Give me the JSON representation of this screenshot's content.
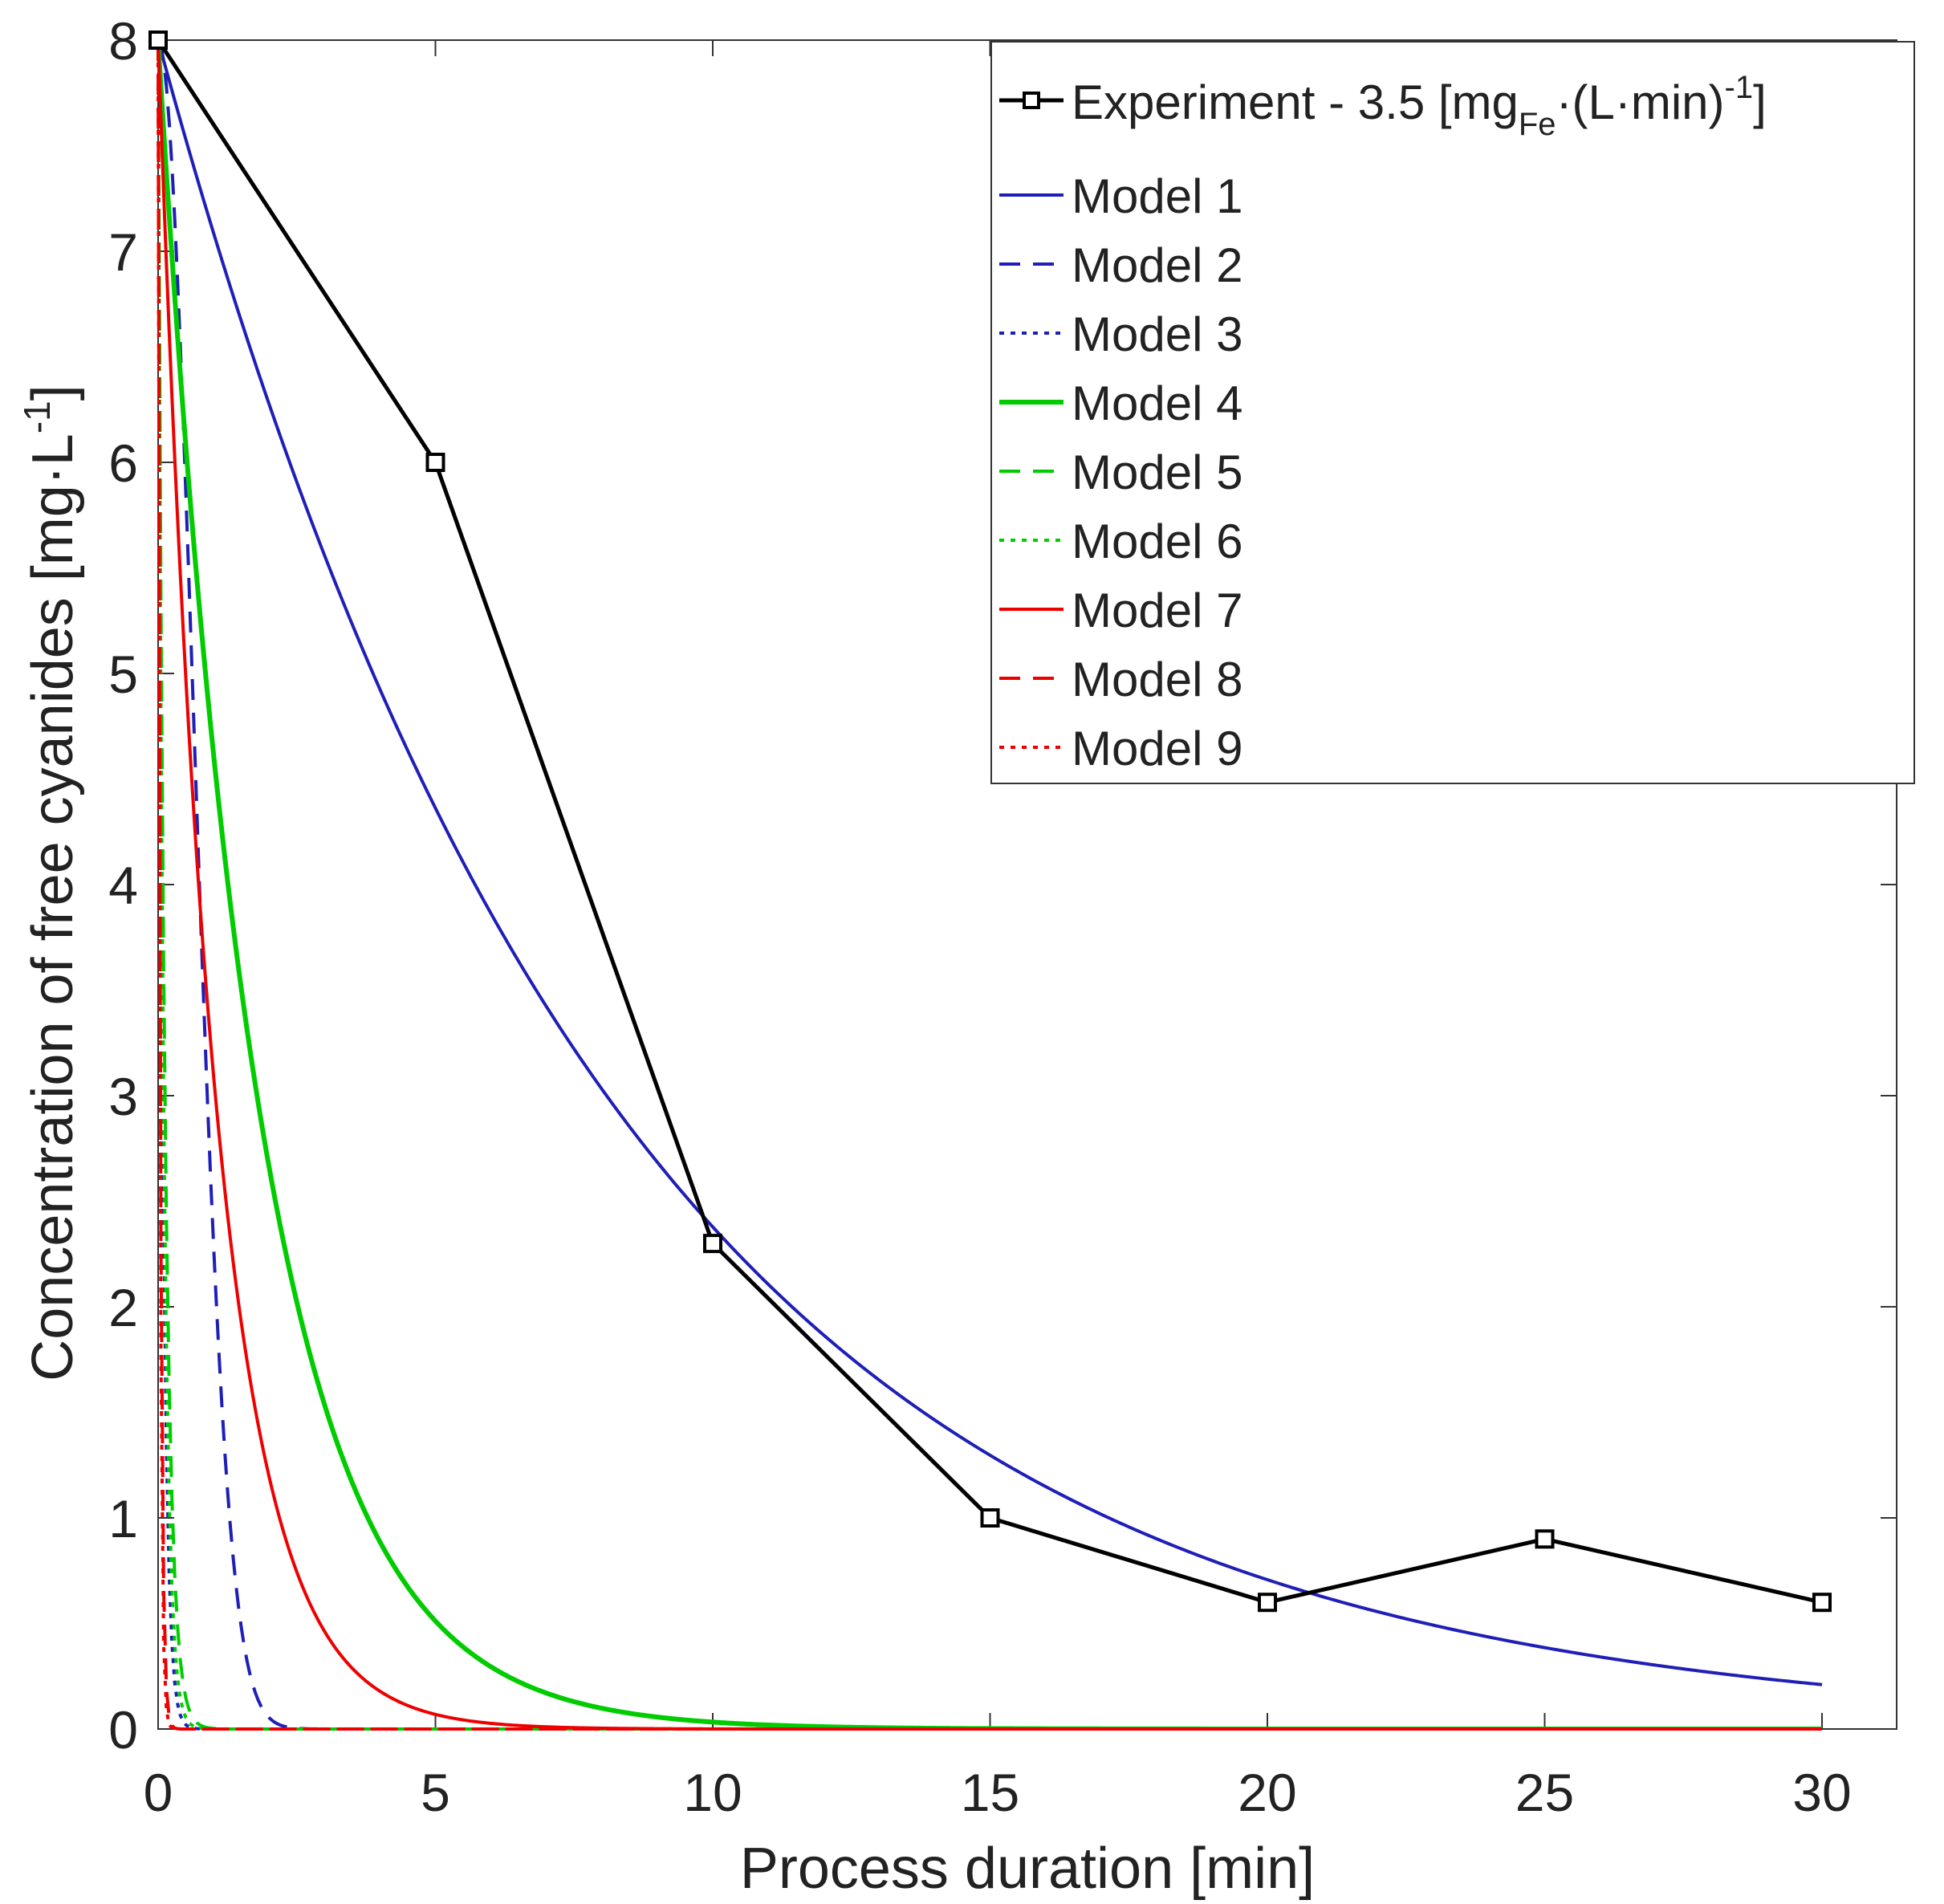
{
  "chart_data": {
    "type": "line",
    "title": "",
    "xlabel": "Process duration [min]",
    "ylabel": {
      "main": "Concentration of free cyanides [mg·L",
      "sup": "-1",
      "close": "]"
    },
    "xlim": [
      0,
      30
    ],
    "ylim": [
      0,
      8
    ],
    "xticks": [
      0,
      5,
      10,
      15,
      20,
      25,
      30
    ],
    "yticks": [
      0,
      1,
      2,
      3,
      4,
      5,
      6,
      7,
      8
    ],
    "grid": false,
    "legend_position": "top-right",
    "experiment": {
      "name": "Experiment - 3.5 [mgFe·(L·min)-1]",
      "label_parts": {
        "a": "Experiment - 3.5 [mg",
        "sub": "Fe",
        "b": "·(L·min)",
        "sup": "-1",
        "c": "]"
      },
      "color": "#000000",
      "x": [
        0,
        5,
        10,
        15,
        20,
        25,
        30
      ],
      "y": [
        8.0,
        6.0,
        2.3,
        1.0,
        0.6,
        0.9,
        0.6
      ]
    },
    "models": [
      {
        "name": "Model 1",
        "color": "#1f1fb8",
        "dash": "solid",
        "law": "exp",
        "k": 0.1213
      },
      {
        "name": "Model 2",
        "color": "#1f1fb8",
        "dash": "dashed",
        "law": "gauss",
        "k": 1.25
      },
      {
        "name": "Model 3",
        "color": "#1f1fb8",
        "dash": "dotted",
        "law": "exp",
        "k": 12.0
      },
      {
        "name": "Model 4",
        "color": "#00cc00",
        "dash": "solid",
        "law": "exp",
        "k": 0.55
      },
      {
        "name": "Model 5",
        "color": "#00cc00",
        "dash": "dashed",
        "law": "exp",
        "k": 8.0
      },
      {
        "name": "Model 6",
        "color": "#00cc00",
        "dash": "dotted",
        "law": "exp",
        "k": 10.0
      },
      {
        "name": "Model 7",
        "color": "#ee0000",
        "dash": "solid",
        "law": "exp",
        "k": 0.95
      },
      {
        "name": "Model 8",
        "color": "#ee0000",
        "dash": "dashed",
        "law": "exp",
        "k": 25.0
      },
      {
        "name": "Model 9",
        "color": "#ee0000",
        "dash": "dotted",
        "law": "exp",
        "k": 30.0
      }
    ]
  }
}
